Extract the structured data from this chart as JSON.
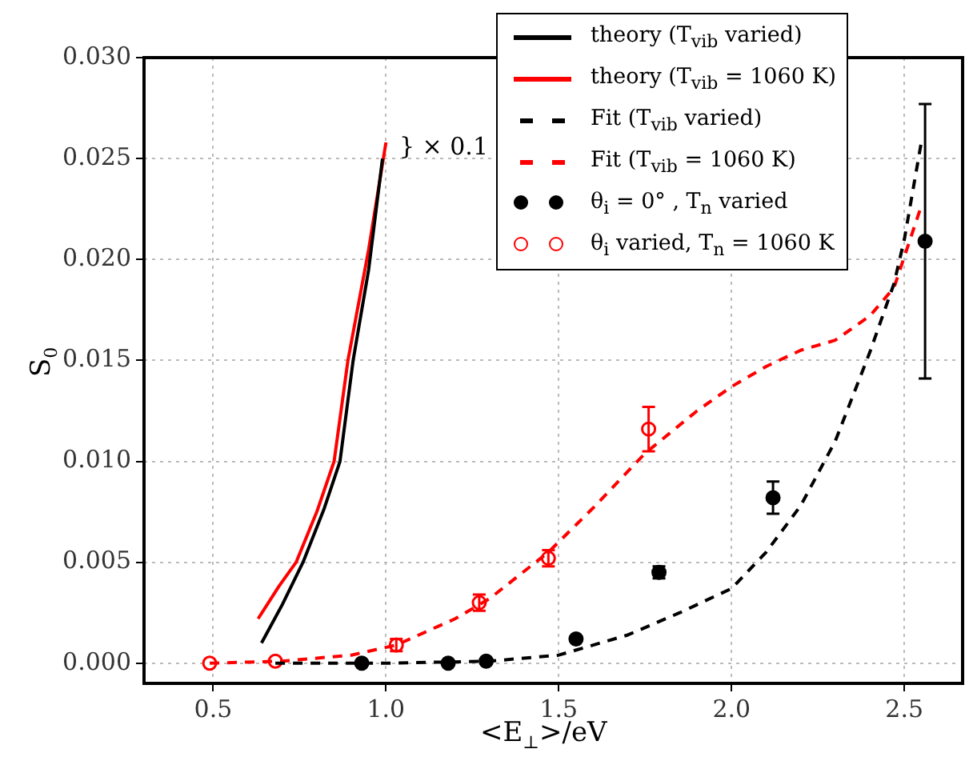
{
  "chart_data": {
    "type": "line",
    "xlabel": "<E$_{⊥}$>/eV",
    "ylabel": "S$_{0}$",
    "xlim": [
      0.3,
      2.65
    ],
    "ylim": [
      -0.001,
      0.03
    ],
    "xticks": [
      {
        "value": 0.5,
        "label": "0.5"
      },
      {
        "value": 1.0,
        "label": "1.0"
      },
      {
        "value": 1.5,
        "label": "1.5"
      },
      {
        "value": 2.0,
        "label": "2.0"
      },
      {
        "value": 2.5,
        "label": "2.5"
      }
    ],
    "yticks": [
      {
        "value": 0,
        "label": "0.000"
      },
      {
        "value": 0.005,
        "label": "0.005"
      },
      {
        "value": 0.01,
        "label": "0.010"
      },
      {
        "value": 0.015,
        "label": "0.015"
      },
      {
        "value": 0.02,
        "label": "0.020"
      },
      {
        "value": 0.025,
        "label": "0.025"
      },
      {
        "value": 0.03,
        "label": "0.030"
      }
    ],
    "grid": true,
    "legend": "top right",
    "marker": "none",
    "series": [
      {
        "name": "theory (T$_{vib}$ varied)",
        "line_style": "solid",
        "color": "#000000",
        "x": [
          0.64,
          0.7,
          0.76,
          0.82,
          0.867,
          0.905,
          0.95,
          0.99
        ],
        "values": [
          0.001,
          0.0029,
          0.005,
          0.0076,
          0.01,
          0.015,
          0.0195,
          0.025
        ]
      },
      {
        "name": "theory (T$_{vib}$ = 1060 K)",
        "line_style": "solid",
        "color": "#ff0000",
        "x": [
          0.63,
          0.69,
          0.74,
          0.8,
          0.85,
          0.89,
          0.95,
          1.0
        ],
        "values": [
          0.0022,
          0.0038,
          0.005,
          0.0075,
          0.01,
          0.015,
          0.0205,
          0.0258
        ]
      },
      {
        "name": "Fit (T$_{vib}$ varied)",
        "line_style": "dashed",
        "color": "#000000",
        "x": [
          0.68,
          1.0,
          1.3,
          1.5,
          1.7,
          1.85,
          2.0,
          2.1,
          2.2,
          2.3,
          2.4,
          2.47,
          2.5,
          2.55
        ],
        "values": [
          0,
          0,
          0.0001,
          0.0004,
          0.0014,
          0.0025,
          0.0037,
          0.0055,
          0.0078,
          0.011,
          0.0154,
          0.0188,
          0.021,
          0.0259
        ]
      },
      {
        "name": "Fit (T$_{vib}$ = 1060 K)",
        "line_style": "dashed",
        "color": "#ff0000",
        "x": [
          0.49,
          0.7,
          0.9,
          1.03,
          1.2,
          1.3,
          1.47,
          1.6,
          1.75,
          1.9,
          2.0,
          2.1,
          2.2,
          2.3,
          2.4,
          2.47,
          2.55
        ],
        "values": [
          0,
          0.0001,
          0.0004,
          0.0009,
          0.0022,
          0.0032,
          0.0055,
          0.0077,
          0.0104,
          0.0125,
          0.0137,
          0.0147,
          0.0155,
          0.016,
          0.0172,
          0.0186,
          0.0227
        ]
      },
      {
        "name": "θ$_{i}$ = 0° , T$_{n}$ varied",
        "type": "scatter",
        "marker": "circle",
        "color": "#000000",
        "x": [
          0.93,
          1.18,
          1.29,
          1.55,
          1.79,
          2.12,
          2.56
        ],
        "values": [
          0,
          0,
          0.0001,
          0.0012,
          0.0045,
          0.0082,
          0.0209
        ],
        "errors": [
          null,
          null,
          null,
          null,
          0.0003,
          0.0008,
          [
            0.0141,
            0.0277
          ]
        ]
      },
      {
        "name": "θ$_{i}$ varied, T$_{n}$ = 1060 K",
        "type": "scatter",
        "marker": "circle",
        "color": "#ff0000",
        "x": [
          0.49,
          0.68,
          1.03,
          1.27,
          1.47,
          1.76
        ],
        "values": [
          0,
          0.0001,
          0.0009,
          0.003,
          0.0052,
          0.0116
        ],
        "errors": [
          null,
          null,
          0.0003,
          0.0004,
          0.0004,
          0.0011
        ]
      }
    ],
    "annotations": [
      {
        "text": "} × 0.1",
        "x": 1.02,
        "y": 0.0255
      }
    ]
  }
}
